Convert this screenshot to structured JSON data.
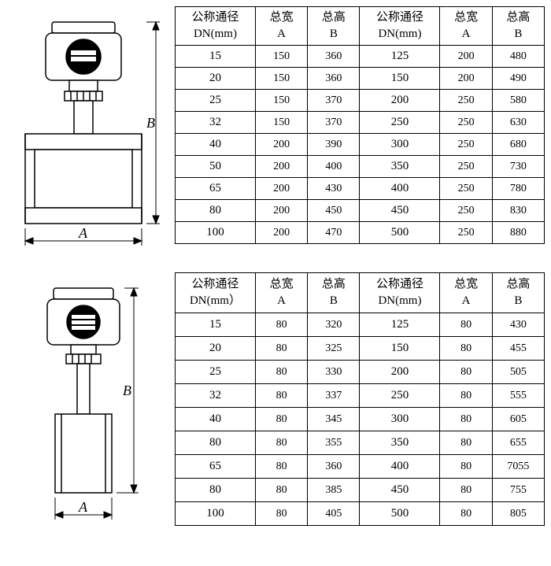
{
  "labels": {
    "dn_cn": "公称通径",
    "dn_en": "DN(mm)",
    "dn_en2": "DN(mm）",
    "width_cn": "总宽",
    "height_cn": "总高",
    "A": "A",
    "B": "B"
  },
  "table1": {
    "rows": [
      [
        "15",
        "150",
        "360",
        "125",
        "200",
        "480"
      ],
      [
        "20",
        "150",
        "360",
        "150",
        "200",
        "490"
      ],
      [
        "25",
        "150",
        "370",
        "200",
        "250",
        "580"
      ],
      [
        "32",
        "150",
        "370",
        "250",
        "250",
        "630"
      ],
      [
        "40",
        "200",
        "390",
        "300",
        "250",
        "680"
      ],
      [
        "50",
        "200",
        "400",
        "350",
        "250",
        "730"
      ],
      [
        "65",
        "200",
        "430",
        "400",
        "250",
        "780"
      ],
      [
        "80",
        "200",
        "450",
        "450",
        "250",
        "830"
      ],
      [
        "100",
        "200",
        "470",
        "500",
        "250",
        "880"
      ]
    ],
    "col_widths_pct": [
      20,
      13,
      13,
      20,
      13,
      13
    ]
  },
  "table2": {
    "rows": [
      [
        "15",
        "80",
        "320",
        "125",
        "80",
        "430"
      ],
      [
        "20",
        "80",
        "325",
        "150",
        "80",
        "455"
      ],
      [
        "25",
        "80",
        "330",
        "200",
        "80",
        "505"
      ],
      [
        "32",
        "80",
        "337",
        "250",
        "80",
        "555"
      ],
      [
        "40",
        "80",
        "345",
        "300",
        "80",
        "605"
      ],
      [
        "80",
        "80",
        "355",
        "350",
        "80",
        "655"
      ],
      [
        "65",
        "80",
        "360",
        "400",
        "80",
        "7055"
      ],
      [
        "80",
        "80",
        "385",
        "450",
        "80",
        "755"
      ],
      [
        "100",
        "80",
        "405",
        "500",
        "80",
        "805"
      ]
    ],
    "col_widths_pct": [
      20,
      13,
      13,
      20,
      13,
      13
    ]
  },
  "diagrams": {
    "stroke": "#000000",
    "fill": "#ffffff",
    "dim_font": "italic 18px serif"
  }
}
